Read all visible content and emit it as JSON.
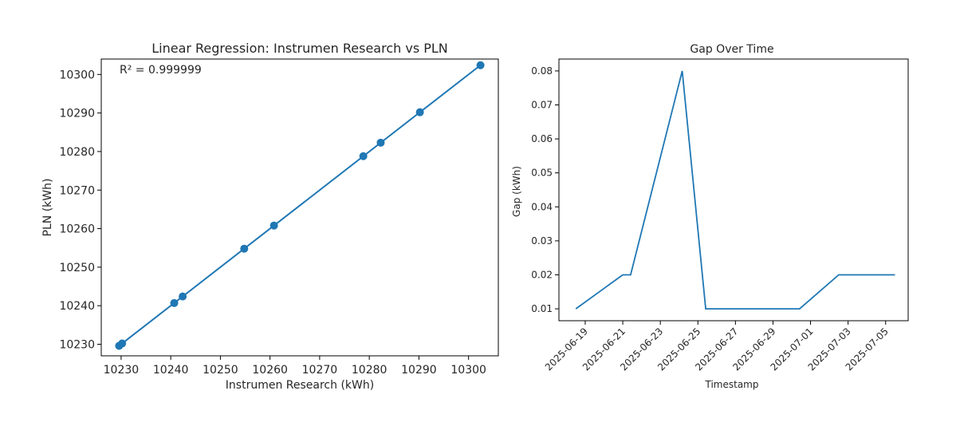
{
  "chart_data": [
    {
      "type": "scatter",
      "title": "Linear Regression: Instrumen Research vs PLN",
      "xlabel": "Instrumen Research (kWh)",
      "ylabel": "PLN (kWh)",
      "annotation": "R² = 0.999999",
      "xlim": [
        10226,
        10306
      ],
      "ylim": [
        10227,
        10304
      ],
      "xticks": [
        10230,
        10240,
        10250,
        10260,
        10270,
        10280,
        10290,
        10300
      ],
      "yticks": [
        10230,
        10240,
        10250,
        10260,
        10270,
        10280,
        10290,
        10300
      ],
      "points": [
        {
          "x": 10229.6,
          "y": 10229.6
        },
        {
          "x": 10230.2,
          "y": 10230.2
        },
        {
          "x": 10240.7,
          "y": 10240.7
        },
        {
          "x": 10242.4,
          "y": 10242.4
        },
        {
          "x": 10254.8,
          "y": 10254.8
        },
        {
          "x": 10260.8,
          "y": 10260.8
        },
        {
          "x": 10278.8,
          "y": 10278.8
        },
        {
          "x": 10282.3,
          "y": 10282.3
        },
        {
          "x": 10290.2,
          "y": 10290.2
        },
        {
          "x": 10302.4,
          "y": 10302.4
        }
      ],
      "fit_line": {
        "x": [
          10229.6,
          10302.4
        ],
        "y": [
          10229.6,
          10302.4
        ]
      },
      "color": "#1f77b4",
      "grid": false
    },
    {
      "type": "line",
      "title": "Gap Over Time",
      "xlabel": "Timestamp",
      "ylabel": "Gap (kWh)",
      "x_start_date": "2025-06-18",
      "xlim_dates": [
        "2025-06-17T14:24",
        "2025-07-06T04:48"
      ],
      "ylim": [
        0.0065,
        0.0835
      ],
      "xticks": [
        "2025-06-19",
        "2025-06-21",
        "2025-06-23",
        "2025-06-25",
        "2025-06-27",
        "2025-06-29",
        "2025-07-01",
        "2025-07-03",
        "2025-07-05"
      ],
      "yticks": [
        0.01,
        0.02,
        0.03,
        0.04,
        0.05,
        0.06,
        0.07,
        0.08
      ],
      "series": [
        {
          "x": [
            "2025-06-18T12:00",
            "2025-06-21T00:00",
            "2025-06-21T10:00",
            "2025-06-24T04:00",
            "2025-06-25T10:00",
            "2025-06-30T10:00",
            "2025-07-02T12:00",
            "2025-07-05T12:00"
          ],
          "values": [
            0.01,
            0.02,
            0.02,
            0.08,
            0.01,
            0.01,
            0.02,
            0.02
          ]
        }
      ],
      "color": "#1f77b4",
      "grid": false
    }
  ]
}
